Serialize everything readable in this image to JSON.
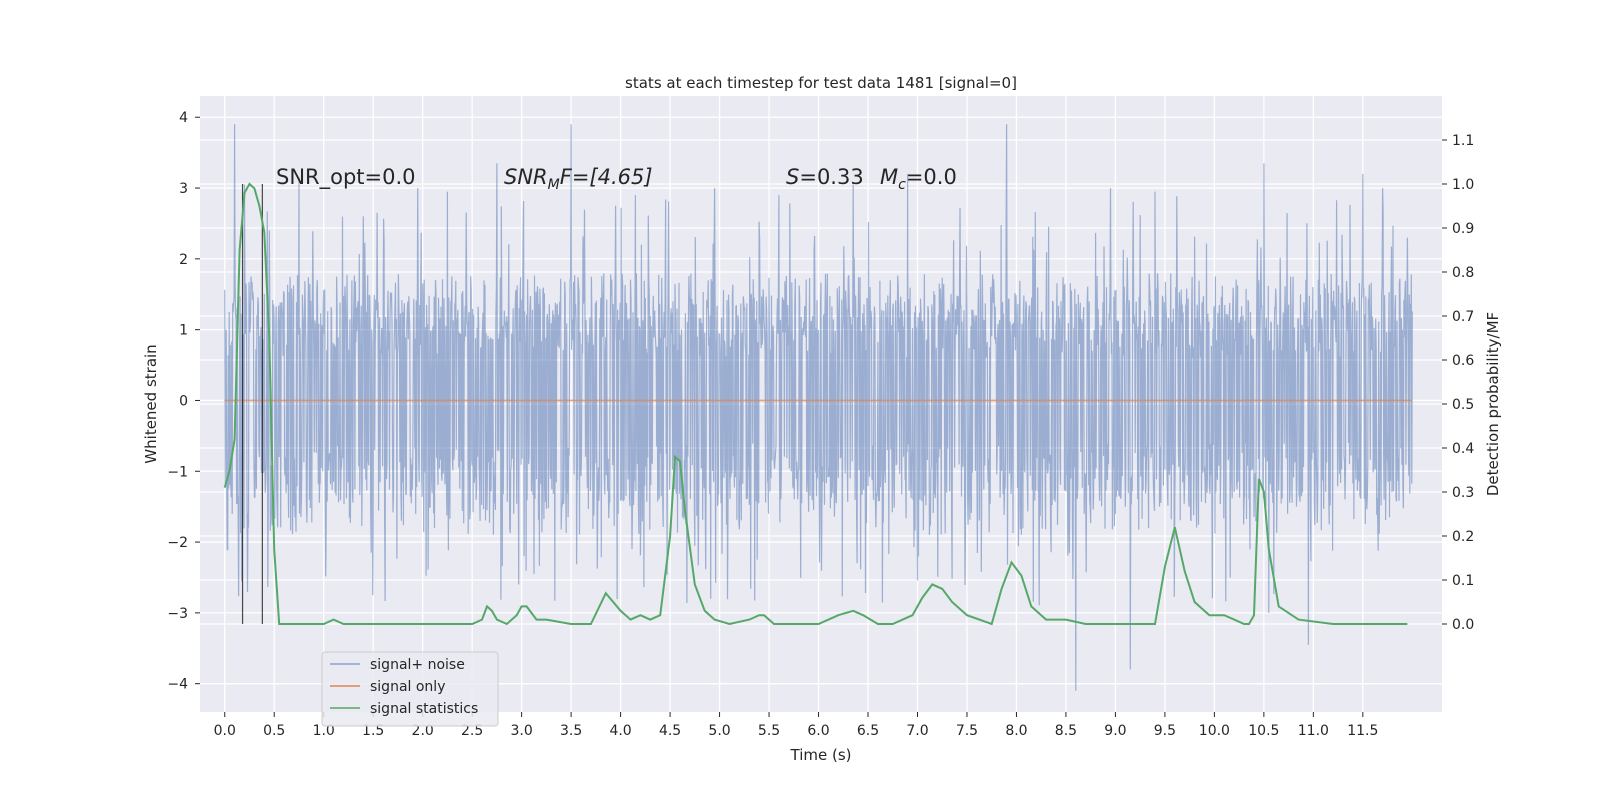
{
  "chart_data": {
    "type": "line",
    "title": "stats at each timestep for test data 1481 [signal=0]",
    "xlabel": "Time (s)",
    "ylabel": "Whitened strain",
    "y2label": "Detection probability/MF",
    "xlim": [
      -0.25,
      12.3
    ],
    "ylim": [
      -4.4,
      4.3
    ],
    "y2lim": [
      -0.2,
      1.2
    ],
    "x_ticks": [
      0.0,
      0.5,
      1.0,
      1.5,
      2.0,
      2.5,
      3.0,
      3.5,
      4.0,
      4.5,
      5.0,
      5.5,
      6.0,
      6.5,
      7.0,
      7.5,
      8.0,
      8.5,
      9.0,
      9.5,
      10.0,
      10.5,
      11.0,
      11.5
    ],
    "x_tick_labels": [
      "0.0",
      "0.5",
      "1.0",
      "1.5",
      "2.0",
      "2.5",
      "3.0",
      "3.5",
      "4.0",
      "4.5",
      "5.0",
      "5.5",
      "6.0",
      "6.5",
      "7.0",
      "7.5",
      "8.0",
      "8.5",
      "9.0",
      "9.5",
      "10.0",
      "10.5",
      "11.0",
      "11.5"
    ],
    "y_ticks": [
      -4,
      -3,
      -2,
      -1,
      0,
      1,
      2,
      3,
      4
    ],
    "y_tick_labels": [
      "−4",
      "−3",
      "−2",
      "−1",
      "0",
      "1",
      "2",
      "3",
      "4"
    ],
    "y2_ticks": [
      0.0,
      0.1,
      0.2,
      0.3,
      0.4,
      0.5,
      0.6,
      0.7,
      0.8,
      0.9,
      1.0,
      1.1
    ],
    "y2_tick_labels": [
      "0.0",
      "0.1",
      "0.2",
      "0.3",
      "0.4",
      "0.5",
      "0.6",
      "0.7",
      "0.8",
      "0.9",
      "1.0",
      "1.1"
    ],
    "grid": true,
    "legend_placement": "lower-left",
    "annotations": {
      "snr_opt": "SNR_opt=0.0",
      "snr_mf_base": "SNR",
      "snr_mf_sub": "M",
      "snr_mf_rest": "F=[4.65]",
      "s_label": "S",
      "s_value": "=0.33",
      "mc_label": "M",
      "mc_sub": "c",
      "mc_value": "=0.0"
    },
    "vertical_markers": [
      0.18,
      0.38
    ],
    "series": [
      {
        "name": "signal+ noise",
        "color": "#4c72b0",
        "axis": "left",
        "x_range": [
          0.0,
          12.0
        ],
        "envelope_typical": [
          -1.9,
          1.8
        ],
        "spikes": [
          [
            0.1,
            3.9
          ],
          [
            0.1,
            -3.65
          ],
          [
            0.2,
            3.05
          ],
          [
            0.2,
            -2.9
          ],
          [
            0.45,
            2.4
          ],
          [
            0.75,
            3.15
          ],
          [
            1.4,
            2.6
          ],
          [
            1.95,
            3.0
          ],
          [
            2.25,
            2.95
          ],
          [
            2.75,
            3.35
          ],
          [
            3.5,
            3.9
          ],
          [
            3.95,
            2.75
          ],
          [
            4.15,
            2.9
          ],
          [
            4.95,
            3.0
          ],
          [
            5.6,
            2.9
          ],
          [
            6.35,
            3.05
          ],
          [
            6.9,
            3.2
          ],
          [
            7.9,
            3.9
          ],
          [
            8.6,
            -4.1
          ],
          [
            8.95,
            3.0
          ],
          [
            9.15,
            -3.8
          ],
          [
            9.4,
            2.95
          ],
          [
            10.5,
            3.35
          ],
          [
            10.55,
            -3.0
          ],
          [
            10.95,
            -3.45
          ],
          [
            11.5,
            3.2
          ],
          [
            11.7,
            3.0
          ],
          [
            11.95,
            2.3
          ]
        ]
      },
      {
        "name": "signal only",
        "color": "#dd8452",
        "axis": "left",
        "x": [
          0.0,
          12.0
        ],
        "y": [
          0.0,
          0.0
        ]
      },
      {
        "name": "signal statistics",
        "color": "#55a868",
        "axis": "right",
        "x": [
          0.0,
          0.05,
          0.1,
          0.15,
          0.2,
          0.25,
          0.3,
          0.35,
          0.4,
          0.45,
          0.5,
          0.55,
          0.6,
          0.65,
          0.7,
          1.0,
          1.1,
          1.2,
          1.5,
          2.0,
          2.5,
          2.6,
          2.65,
          2.7,
          2.75,
          2.85,
          2.95,
          3.0,
          3.05,
          3.15,
          3.25,
          3.5,
          3.7,
          3.85,
          4.0,
          4.1,
          4.2,
          4.3,
          4.4,
          4.5,
          4.55,
          4.6,
          4.65,
          4.75,
          4.85,
          4.95,
          5.1,
          5.3,
          5.4,
          5.45,
          5.55,
          5.7,
          6.0,
          6.2,
          6.35,
          6.45,
          6.6,
          6.75,
          6.95,
          7.05,
          7.15,
          7.25,
          7.35,
          7.5,
          7.75,
          7.85,
          7.95,
          8.05,
          8.15,
          8.3,
          8.5,
          8.7,
          9.0,
          9.4,
          9.5,
          9.6,
          9.7,
          9.8,
          9.95,
          10.1,
          10.2,
          10.3,
          10.35,
          10.4,
          10.45,
          10.5,
          10.55,
          10.65,
          10.85,
          11.2,
          11.5,
          11.95
        ],
        "y": [
          0.31,
          0.35,
          0.42,
          0.85,
          0.98,
          1.0,
          0.99,
          0.95,
          0.89,
          0.65,
          0.17,
          0.0,
          0.0,
          0.0,
          0.0,
          0.0,
          0.01,
          0.0,
          0.0,
          0.0,
          0.0,
          0.01,
          0.04,
          0.03,
          0.01,
          0.0,
          0.02,
          0.04,
          0.04,
          0.01,
          0.01,
          0.0,
          0.0,
          0.07,
          0.03,
          0.01,
          0.02,
          0.01,
          0.02,
          0.2,
          0.38,
          0.37,
          0.26,
          0.09,
          0.03,
          0.01,
          0.0,
          0.01,
          0.02,
          0.02,
          0.0,
          0.0,
          0.0,
          0.02,
          0.03,
          0.02,
          0.0,
          0.0,
          0.02,
          0.06,
          0.09,
          0.08,
          0.05,
          0.02,
          0.0,
          0.08,
          0.14,
          0.11,
          0.04,
          0.01,
          0.01,
          0.0,
          0.0,
          0.0,
          0.13,
          0.22,
          0.12,
          0.05,
          0.02,
          0.02,
          0.01,
          0.0,
          0.0,
          0.02,
          0.33,
          0.3,
          0.17,
          0.04,
          0.01,
          0.0,
          0.0,
          0.0
        ]
      }
    ]
  }
}
